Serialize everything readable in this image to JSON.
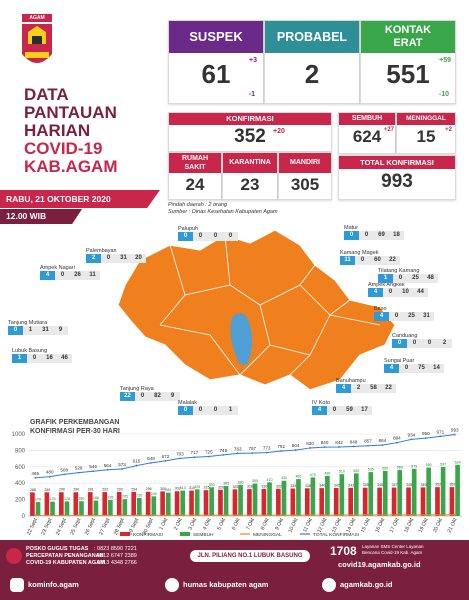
{
  "logo_text": "AGAM",
  "title": {
    "l1": "DATA",
    "l2": "PANTAUAN",
    "l3": "HARIAN",
    "l4": "COVID-19",
    "l5": "KAB.AGAM"
  },
  "date": "RABU, 21 OKTOBER 2020",
  "time": "12.00 WIB",
  "suspek": {
    "label": "SUSPEK",
    "value": "61",
    "up": "+3",
    "down": "-1"
  },
  "probabel": {
    "label": "PROBABEL",
    "value": "2"
  },
  "kontak": {
    "label1": "KONTAK",
    "label2": "ERAT",
    "value": "551",
    "up": "+59",
    "down": "-10"
  },
  "konfirmasi": {
    "label": "KONFIRMASI",
    "value": "352",
    "up": "+20"
  },
  "sembuh": {
    "label": "SEMBUH",
    "value": "624",
    "up": "+27"
  },
  "meninggal": {
    "label": "MENINGGAL",
    "value": "15",
    "up": "+2"
  },
  "rumah_sakit": {
    "label1": "RUMAH",
    "label2": "SAKIT",
    "value": "24"
  },
  "karantina": {
    "label": "KARANTINA",
    "value": "23"
  },
  "mandiri": {
    "label": "MANDIRI",
    "value": "305"
  },
  "total_konfirmasi": {
    "label": "TOTAL KONFIRMASI",
    "value": "993"
  },
  "notes": {
    "n1": "Pindah daerah : 2 orang",
    "n2": "Sumber : Dinas Kesehatan Kabupaten Agam"
  },
  "regions": [
    {
      "name": "Palupuh",
      "v": [
        "0",
        "0",
        "0",
        "0"
      ]
    },
    {
      "name": "Palembayan",
      "v": [
        "2",
        "0",
        "31",
        "20"
      ]
    },
    {
      "name": "Ampek Nagari",
      "v": [
        "4",
        "0",
        "26",
        "11"
      ]
    },
    {
      "name": "Tanjung Mutiara",
      "v": [
        "0",
        "1",
        "31",
        "9"
      ]
    },
    {
      "name": "Lubuk Basung",
      "v": [
        "1",
        "0",
        "16",
        "46"
      ]
    },
    {
      "name": "Tanjung Raya",
      "v": [
        "22",
        "0",
        "82",
        "9"
      ]
    },
    {
      "name": "Malalak",
      "v": [
        "0",
        "0",
        "0",
        "1"
      ]
    },
    {
      "name": "IV Koto",
      "v": [
        "4",
        "0",
        "59",
        "17"
      ]
    },
    {
      "name": "Banuhampu",
      "v": [
        "4",
        "2",
        "58",
        "22"
      ]
    },
    {
      "name": "Sungai Puar",
      "v": [
        "4",
        "0",
        "75",
        "14"
      ]
    },
    {
      "name": "Canduang",
      "v": [
        "0",
        "0",
        "0",
        "2"
      ]
    },
    {
      "name": "Baso",
      "v": [
        "4",
        "0",
        "25",
        "31"
      ]
    },
    {
      "name": "Ampek Angkek",
      "v": [
        "4",
        "0",
        "10",
        "44"
      ]
    },
    {
      "name": "Tilatang Kamang",
      "v": [
        "1",
        "0",
        "25",
        "48"
      ]
    },
    {
      "name": "Kamang Magek",
      "v": [
        "11",
        "0",
        "60",
        "22"
      ]
    },
    {
      "name": "Matur",
      "v": [
        "0",
        "0",
        "69",
        "18"
      ]
    }
  ],
  "chart_title1": "GRAFIK PERKEMBANGAN",
  "chart_title2": "KONFIRMASI PER-30 HARI",
  "chart_data": {
    "type": "bar",
    "title": "GRAFIK PERKEMBANGAN KONFIRMASI PER-30 HARI",
    "ylim": [
      0,
      1000
    ],
    "yticks": [
      0,
      200,
      400,
      600,
      800,
      1000
    ],
    "categories": [
      "22 Sept",
      "23 Sept",
      "24 Sept",
      "25 Sept",
      "26 Sept",
      "27 Sept",
      "28 Sept",
      "29 Sept",
      "30 Sept",
      "1 Okt",
      "2 Okt",
      "3 Okt",
      "4 Okt",
      "5 Okt",
      "6 Okt",
      "7 Okt",
      "8 Okt",
      "9 Okt",
      "10 Okt",
      "11 Okt",
      "12 Okt",
      "13 Okt",
      "14 Okt",
      "15 Okt",
      "16 Okt",
      "17 Okt",
      "18 Okt",
      "19 Okt",
      "20 Okt",
      "21 Okt"
    ],
    "series": [
      {
        "name": "KONFIRMASI",
        "values": [
          288,
          289,
          290,
          290,
          291,
          292,
          293,
          294,
          296,
          300,
          302,
          310,
          315,
          320,
          325,
          328,
          330,
          332,
          335,
          338,
          340,
          342,
          343,
          345,
          346,
          347,
          348,
          349,
          352,
          352
        ]
      },
      {
        "name": "SEMBUH",
        "values": [
          170,
          175,
          178,
          180,
          188,
          195,
          205,
          220,
          240,
          285,
          310,
          325,
          350,
          365,
          380,
          395,
          410,
          430,
          450,
          470,
          490,
          510,
          520,
          535,
          550,
          560,
          575,
          590,
          597,
          624
        ]
      },
      {
        "name": "MENINGGAL",
        "values": [
          7,
          7,
          7,
          8,
          8,
          8,
          8,
          9,
          9,
          9,
          9,
          10,
          10,
          10,
          10,
          10,
          11,
          11,
          11,
          12,
          12,
          12,
          12,
          13,
          13,
          13,
          13,
          13,
          13,
          15
        ]
      },
      {
        "name": "TOTAL KONFIRMASI",
        "values": [
          465,
          480,
          508,
          529,
          546,
          564,
          573,
          615,
          648,
          672,
          703,
          717,
          725,
          745,
          763,
          767,
          773,
          792,
          804,
          830,
          840,
          842,
          848,
          857,
          864,
          894,
          934,
          950,
          971,
          993
        ]
      }
    ],
    "legend": "bottom"
  },
  "footer": {
    "posko_l1": "POSKO GUGUS TUGAS",
    "posko_l2": "PERCEPATAN PENANGANAN",
    "posko_l3": "COVID-19 KABUPATEN AGAM",
    "phone1": ": 0823 8590 7221",
    "phone2": ": 0812 6747 2389",
    "phone3": ": 0813 4348 2766",
    "address": "JLN. PILIANG NO.1 LUBUK BASUNG",
    "hotline": "1708",
    "hotline_desc1": "Layanan SMS Center Layanan",
    "hotline_desc2": "Bencana Covid-19 Kab. Agam",
    "site_covid": "covid19.agamkab.go.id",
    "ig": "kominfo.agam",
    "fb": "humas kabupaten agam",
    "web": "agamkab.go.id"
  },
  "colors": {
    "purple": "#6b2a87",
    "teal": "#2f8f96",
    "green": "#3aa64a",
    "crimson": "#c8264a",
    "orange": "#f08c1e",
    "maroon": "#7a1f3d"
  }
}
